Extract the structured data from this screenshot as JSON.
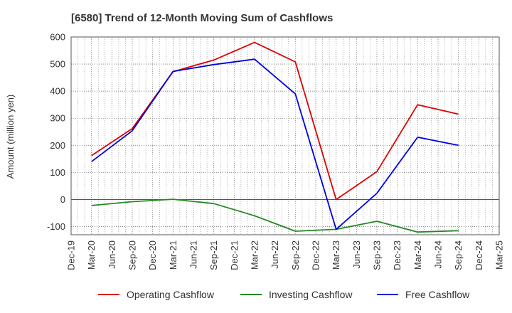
{
  "chart_data": {
    "type": "line",
    "title": "[6580]  Trend of 12-Month Moving Sum of Cashflows",
    "ylabel": "Amount (million yen)",
    "xlabel": "",
    "ylim": [
      -130,
      600
    ],
    "yticks": [
      -100,
      0,
      100,
      200,
      300,
      400,
      500,
      600
    ],
    "grid": true,
    "legend_position": "bottom",
    "x_ticks": [
      "Dec-19",
      "Mar-20",
      "Jun-20",
      "Sep-20",
      "Dec-20",
      "Mar-21",
      "Jun-21",
      "Sep-21",
      "Dec-21",
      "Mar-22",
      "Jun-22",
      "Sep-22",
      "Dec-22",
      "Mar-23",
      "Jun-23",
      "Sep-23",
      "Dec-23",
      "Mar-24",
      "Jun-24",
      "Sep-24",
      "Dec-24",
      "Mar-25"
    ],
    "series": [
      {
        "name": "Operating Cashflow",
        "color": "#dd0000",
        "points": [
          {
            "x": "Mar-20",
            "y": 162
          },
          {
            "x": "Sep-20",
            "y": 262
          },
          {
            "x": "Mar-21",
            "y": 472
          },
          {
            "x": "Sep-21",
            "y": 515
          },
          {
            "x": "Mar-22",
            "y": 580
          },
          {
            "x": "Sep-22",
            "y": 508
          },
          {
            "x": "Mar-23",
            "y": 0
          },
          {
            "x": "Sep-23",
            "y": 103
          },
          {
            "x": "Mar-24",
            "y": 350
          },
          {
            "x": "Sep-24",
            "y": 315
          }
        ]
      },
      {
        "name": "Investing Cashflow",
        "color": "#228822",
        "points": [
          {
            "x": "Mar-20",
            "y": -22
          },
          {
            "x": "Sep-20",
            "y": -8
          },
          {
            "x": "Mar-21",
            "y": 1
          },
          {
            "x": "Sep-21",
            "y": -15
          },
          {
            "x": "Mar-22",
            "y": -60
          },
          {
            "x": "Sep-22",
            "y": -117
          },
          {
            "x": "Mar-23",
            "y": -110
          },
          {
            "x": "Sep-23",
            "y": -80
          },
          {
            "x": "Mar-24",
            "y": -120
          },
          {
            "x": "Sep-24",
            "y": -115
          }
        ]
      },
      {
        "name": "Free Cashflow",
        "color": "#0000dd",
        "points": [
          {
            "x": "Mar-20",
            "y": 140
          },
          {
            "x": "Sep-20",
            "y": 254
          },
          {
            "x": "Mar-21",
            "y": 473
          },
          {
            "x": "Sep-21",
            "y": 498
          },
          {
            "x": "Mar-22",
            "y": 518
          },
          {
            "x": "Sep-22",
            "y": 390
          },
          {
            "x": "Mar-23",
            "y": -110
          },
          {
            "x": "Sep-23",
            "y": 23
          },
          {
            "x": "Mar-24",
            "y": 230
          },
          {
            "x": "Sep-24",
            "y": 200
          }
        ]
      }
    ]
  }
}
